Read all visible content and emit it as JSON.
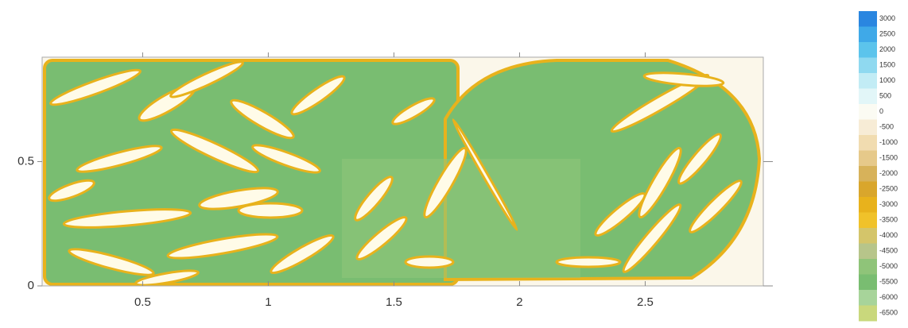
{
  "chart_data": {
    "type": "contour",
    "xlim": [
      0.1,
      2.97
    ],
    "xticks": [
      0.5,
      1,
      1.5,
      2,
      2.5
    ],
    "ylim": [
      0,
      0.92
    ],
    "yticks": [
      0,
      0.5
    ],
    "colorbar": {
      "levels": [
        3000,
        2500,
        2000,
        1500,
        1000,
        500,
        0,
        -500,
        -1000,
        -1500,
        -2000,
        -2500,
        -3000,
        -3500,
        -4000,
        -4500,
        -5000,
        -5500,
        -6000,
        -6500
      ],
      "colors": [
        "#2a86e0",
        "#3fa9e8",
        "#5cc4ec",
        "#8fd9f0",
        "#c2ecf5",
        "#e2f6f8",
        "#fbfbf3",
        "#f7ecd6",
        "#f1dcb0",
        "#e6c98a",
        "#d7b25a",
        "#d9a62c",
        "#e8b21c",
        "#f0c22a",
        "#d4c56a",
        "#b7c58a",
        "#8fc479",
        "#79bd71",
        "#a7d49a",
        "#c9d87c"
      ]
    }
  }
}
